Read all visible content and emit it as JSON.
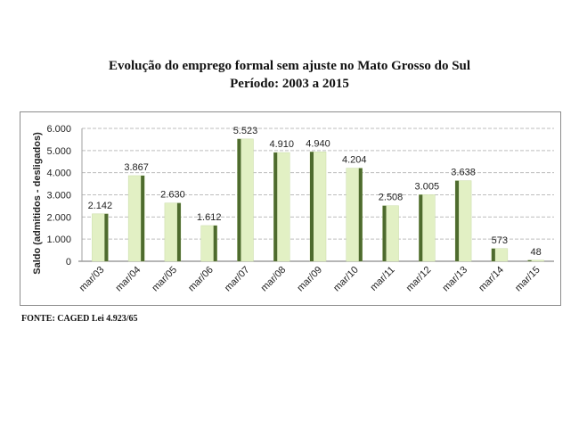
{
  "title_line1": "Evolução do emprego formal sem ajuste no Mato Grosso do Sul",
  "title_line2": "Período: 2003 a 2015",
  "source": "FONTE: CAGED Lei 4.923/65",
  "colors": {
    "bar_light": "#e2f0c4",
    "bar_dark": "#4e6b2e",
    "grid": "#bdbdbd",
    "axis_text": "#222222"
  },
  "chart_data": {
    "type": "bar",
    "ylabel": "Saldo (admitidos - desligados)",
    "ylim": [
      0,
      6000
    ],
    "yticks": [
      {
        "value": 0,
        "label": "0"
      },
      {
        "value": 1000,
        "label": "1.000"
      },
      {
        "value": 2000,
        "label": "2.000"
      },
      {
        "value": 3000,
        "label": "3.000"
      },
      {
        "value": 4000,
        "label": "4.000"
      },
      {
        "value": 5000,
        "label": "5.000"
      },
      {
        "value": 6000,
        "label": "6.000"
      }
    ],
    "grid": true,
    "categories": [
      "mar/03",
      "mar/04",
      "mar/05",
      "mar/06",
      "mar/07",
      "mar/08",
      "mar/09",
      "mar/10",
      "mar/11",
      "mar/12",
      "mar/13",
      "mar/14",
      "mar/15"
    ],
    "values": [
      2142,
      3867,
      2630,
      1612,
      5523,
      4910,
      4940,
      4204,
      2508,
      3005,
      3638,
      573,
      48
    ],
    "value_labels": [
      "2.142",
      "3.867",
      "2.630",
      "1.612",
      "5.523",
      "4.910",
      "4.940",
      "4.204",
      "2.508",
      "3.005",
      "3.638",
      "573",
      "48"
    ],
    "dark_side": [
      "right",
      "right",
      "right",
      "right",
      "left",
      "left",
      "left",
      "right",
      "left",
      "left",
      "left",
      "left",
      "left"
    ]
  }
}
